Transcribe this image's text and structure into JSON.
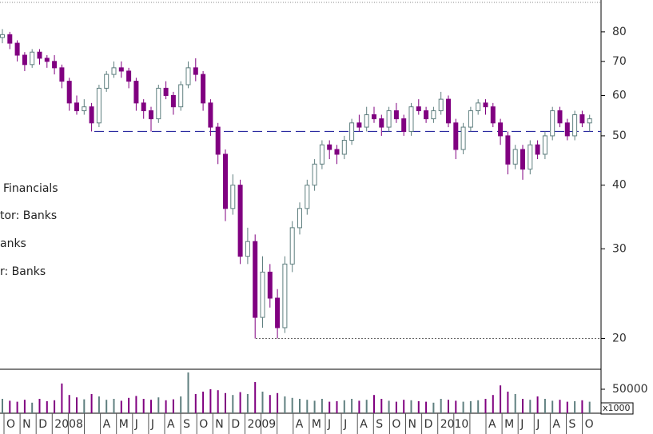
{
  "chart_data": {
    "type": "candlestick",
    "yscale": "log",
    "ylim": [
      17.4,
      92.4
    ],
    "yticks": [
      20,
      30,
      40,
      50,
      60,
      70,
      80
    ],
    "up_color": "#5f7f7f",
    "down_color": "#800080",
    "open": [
      78,
      79,
      76,
      72,
      69,
      73,
      71,
      70,
      68,
      64,
      58,
      56,
      57,
      53,
      62,
      66,
      68,
      67,
      64,
      58,
      56,
      54,
      62,
      60,
      57,
      63,
      68,
      66,
      58,
      52,
      46,
      36,
      40,
      29,
      31,
      22,
      27,
      24,
      21,
      28,
      33,
      36,
      40,
      44,
      48,
      47,
      46,
      49,
      53,
      52,
      55,
      54,
      52,
      56,
      54,
      51,
      57,
      56,
      54,
      56,
      59,
      53,
      47,
      52,
      56,
      58,
      57,
      53,
      50,
      44,
      47,
      43,
      48,
      46,
      50,
      56,
      53,
      50,
      55,
      53
    ],
    "high": [
      81,
      80,
      77,
      73,
      74,
      74,
      72,
      72,
      69,
      65,
      60,
      59,
      58,
      63,
      67,
      70,
      70,
      68,
      65,
      59,
      57,
      63,
      64,
      61,
      64,
      70,
      71,
      67,
      59,
      53,
      47,
      42,
      41,
      33,
      32,
      29,
      28,
      25,
      29,
      34,
      37,
      41,
      45,
      49,
      49,
      48,
      50,
      54,
      55,
      57,
      57,
      55,
      57,
      58,
      55,
      58,
      59,
      57,
      57,
      61,
      60,
      54,
      53,
      57,
      59,
      59,
      58,
      54,
      51,
      48,
      48,
      49,
      49,
      51,
      57,
      57,
      54,
      56,
      56,
      55
    ],
    "low": [
      76,
      74,
      70,
      67,
      68,
      69,
      68,
      66,
      62,
      56,
      55,
      55,
      51,
      52,
      61,
      65,
      65,
      62,
      56,
      54,
      51,
      53,
      59,
      55,
      56,
      62,
      64,
      56,
      50,
      44,
      34,
      35,
      28,
      28,
      20,
      21,
      23,
      20,
      20.5,
      27,
      32,
      35,
      39,
      43,
      45,
      44,
      45,
      48,
      51,
      51,
      53,
      50,
      51,
      53,
      50,
      50,
      55,
      53,
      53,
      55,
      52,
      45,
      46,
      51,
      55,
      55,
      52,
      48,
      42,
      43,
      41,
      42,
      45,
      45,
      49,
      52,
      49,
      49,
      52,
      51
    ],
    "close": [
      79,
      76,
      72,
      69,
      73,
      71,
      70,
      68,
      64,
      58,
      56,
      57,
      53,
      62,
      66,
      68,
      67,
      64,
      58,
      56,
      54,
      62,
      60,
      57,
      63,
      68,
      66,
      58,
      52,
      46,
      36,
      40,
      29,
      31,
      22,
      27,
      24,
      21,
      28,
      33,
      36,
      40,
      44,
      48,
      47,
      46,
      49,
      53,
      52,
      55,
      54,
      52,
      56,
      54,
      51,
      57,
      56,
      54,
      56,
      59,
      53,
      47,
      52,
      56,
      58,
      57,
      53,
      50,
      44,
      47,
      43,
      48,
      46,
      50,
      56,
      53,
      50,
      55,
      53,
      54
    ],
    "x_labels": [
      "O",
      "N",
      "D",
      "2008",
      null,
      null,
      "A",
      "M",
      "J",
      "J",
      "A",
      "S",
      "O",
      "N",
      "D",
      "2009",
      null,
      null,
      "A",
      "M",
      "J",
      "J",
      "A",
      "S",
      "O",
      "N",
      "D",
      "2010",
      null,
      null,
      "A",
      "M",
      "J",
      "J",
      "A",
      "S",
      "O"
    ],
    "hlines": [
      {
        "value": 51,
        "style": "dashed",
        "color": "#2a2aa0"
      },
      {
        "value": 20,
        "style": "dotted",
        "color": "#666666"
      }
    ],
    "annotations": [
      "Financials",
      "tor: Banks",
      "anks",
      "r: Banks"
    ],
    "volume": {
      "values": [
        30000,
        26000,
        24000,
        28000,
        22000,
        30000,
        25000,
        27000,
        62000,
        38000,
        33000,
        29000,
        40000,
        35000,
        28000,
        30000,
        26000,
        32000,
        36000,
        30000,
        28000,
        33000,
        27000,
        29000,
        35000,
        85000,
        40000,
        45000,
        50000,
        48000,
        42000,
        38000,
        44000,
        40000,
        65000,
        45000,
        38000,
        42000,
        35000,
        32000,
        30000,
        28000,
        26000,
        30000,
        24000,
        25000,
        27000,
        30000,
        26000,
        28000,
        38000,
        30000,
        26000,
        24000,
        28000,
        27000,
        25000,
        24000,
        22000,
        30000,
        28000,
        26000,
        24000,
        25000,
        27000,
        30000,
        38000,
        58000,
        45000,
        40000,
        30000,
        28000,
        35000,
        30000,
        26000,
        28000,
        24000,
        25000,
        27000,
        24000
      ],
      "ylim": [
        0,
        90000
      ],
      "yticks": [
        50000
      ],
      "unit_label": "x1000"
    }
  }
}
